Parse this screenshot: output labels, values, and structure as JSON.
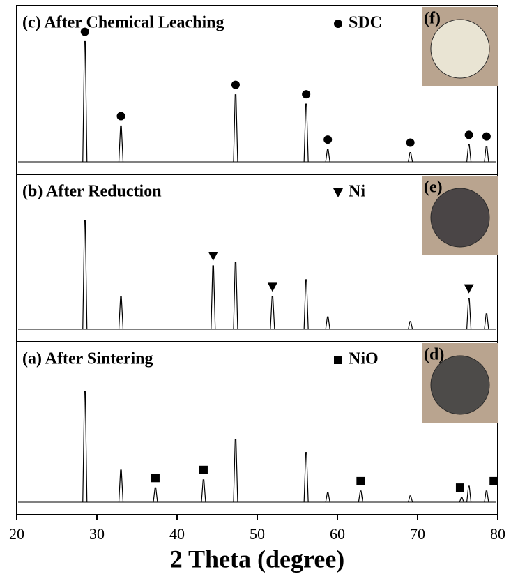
{
  "chart_data": {
    "type": "xrd-stack",
    "xlabel": "2 Theta (degree)",
    "xlim": [
      20,
      80
    ],
    "xticks": [
      20,
      30,
      40,
      50,
      60,
      70,
      80
    ],
    "ylim": [
      0,
      100
    ],
    "line_color": "#000000",
    "panels": [
      {
        "label": "(c) After Chemical Leaching",
        "phase": "SDC",
        "marker": "circle",
        "photo_label": "(f)",
        "photo_color": "#e9e4d3",
        "peaks": {
          "x": [
            28.5,
            33.0,
            47.3,
            56.1,
            58.8,
            69.1,
            76.4,
            78.6
          ],
          "heights": [
            77,
            23,
            43,
            37,
            8,
            6,
            11,
            10
          ]
        },
        "marker_x": [
          28.5,
          33.0,
          47.3,
          56.1,
          58.8,
          69.1,
          76.4,
          78.6
        ]
      },
      {
        "label": "(b) After  Reduction",
        "phase": "Ni",
        "marker": "triangle",
        "photo_label": "(e)",
        "photo_color": "#4a4546",
        "peaks": {
          "x": [
            28.5,
            33.0,
            44.5,
            47.3,
            51.9,
            56.1,
            58.8,
            69.1,
            76.4,
            78.6
          ],
          "heights": [
            70,
            21,
            41,
            43,
            21,
            32,
            8,
            5,
            20,
            10
          ]
        },
        "marker_x": [
          44.5,
          51.9,
          76.4
        ]
      },
      {
        "label": "(a) After  Sintering",
        "phase": "NiO",
        "marker": "square",
        "photo_label": "(d)",
        "photo_color": "#4d4b49",
        "peaks": {
          "x": [
            28.5,
            33.0,
            37.3,
            43.3,
            47.3,
            56.1,
            58.8,
            62.9,
            69.1,
            75.5,
            76.4,
            78.6
          ],
          "heights": [
            69,
            20,
            9,
            14,
            39,
            31,
            6,
            7,
            4,
            3,
            10,
            7
          ]
        },
        "marker_x": [
          37.3,
          43.3,
          62.9,
          75.3,
          79.5
        ]
      }
    ]
  }
}
